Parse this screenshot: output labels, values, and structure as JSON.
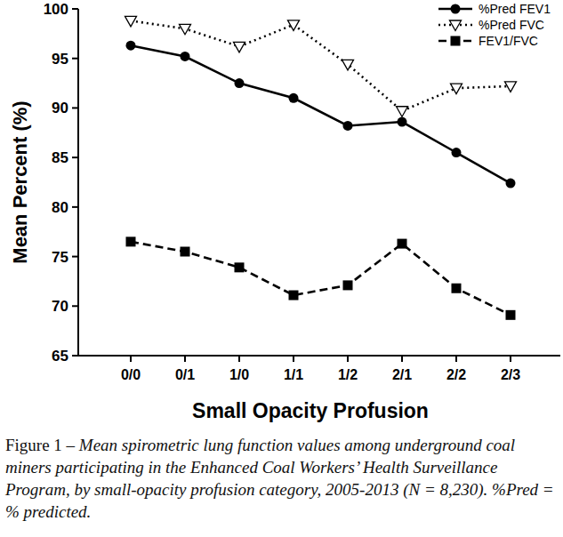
{
  "chart_data": {
    "type": "line",
    "x_label": "Small Opacity Profusion",
    "y_label": "Mean Percent (%)",
    "caption": {
      "label": "Figure 1 –",
      "text": "Mean spirometric lung function values among underground coal miners participating in the Enhanced Coal Workers’ Health Surveillance Program, by small-opacity profusion category, 2005-2013 (N = 8,230). %Pred = % predicted."
    },
    "categories": [
      "0/0",
      "0/1",
      "1/0",
      "1/1",
      "1/2",
      "2/1",
      "2/2",
      "2/3"
    ],
    "series": [
      {
        "name": "%Pred FEV1",
        "color": "#000000",
        "marker": "circle",
        "line_style": "solid",
        "values": [
          96.3,
          95.2,
          92.5,
          91.0,
          88.2,
          88.6,
          85.5,
          82.4
        ]
      },
      {
        "name": "%Pred FVC",
        "color": "#000000",
        "marker": "open-triangle-down",
        "line_style": "dotted",
        "values": [
          98.8,
          98.0,
          96.2,
          98.4,
          94.4,
          89.7,
          92.0,
          92.2
        ]
      },
      {
        "name": "FEV1/FVC",
        "color": "#000000",
        "marker": "square",
        "line_style": "dashed",
        "values": [
          76.5,
          75.5,
          73.9,
          71.1,
          72.1,
          76.3,
          71.8,
          69.1
        ]
      }
    ],
    "ylim": [
      65,
      100
    ],
    "yticks": [
      65,
      70,
      75,
      80,
      85,
      90,
      95,
      100
    ],
    "grid": false,
    "legend": "top-right"
  }
}
